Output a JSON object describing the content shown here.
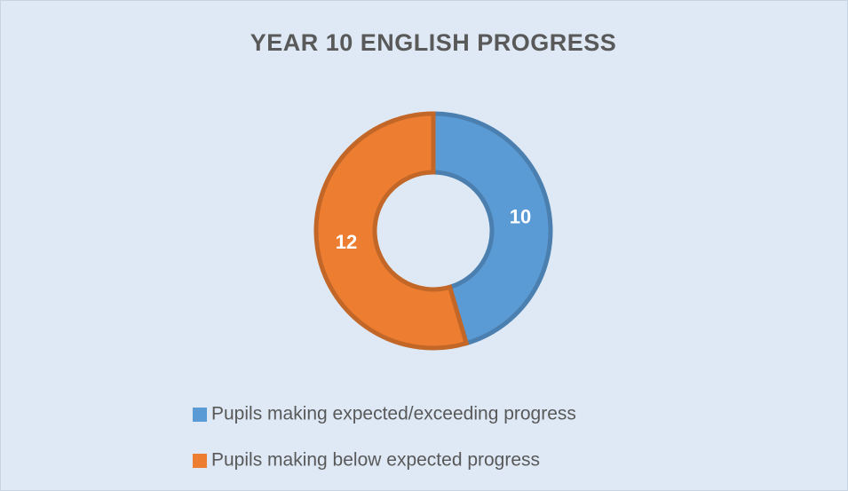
{
  "chart_data": {
    "type": "donut",
    "title": "YEAR 10 ENGLISH PROGRESS",
    "categories": [
      "Pupils making expected/exceeding progress",
      "Pupils making below expected progress"
    ],
    "values": [
      10,
      12
    ],
    "colors": [
      "#5b9bd5",
      "#ed7d31"
    ],
    "legend": "bottom"
  }
}
